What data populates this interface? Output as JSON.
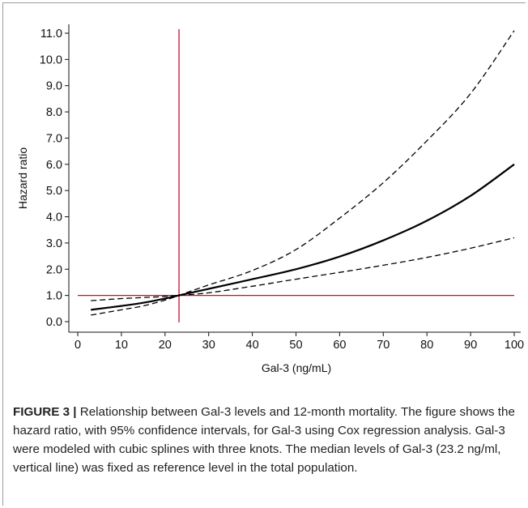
{
  "chart_data": {
    "type": "line",
    "title": "",
    "xlabel": "Gal-3 (ng/mL)",
    "ylabel": "Hazard ratio",
    "xlim": [
      0,
      100
    ],
    "ylim": [
      0,
      11
    ],
    "xticks": [
      "0",
      "10",
      "20",
      "30",
      "40",
      "50",
      "60",
      "70",
      "80",
      "90",
      "100"
    ],
    "yticks": [
      "0.0",
      "1.0",
      "2.0",
      "3.0",
      "4.0",
      "5.0",
      "6.0",
      "7.0",
      "8.0",
      "9.0",
      "10.0",
      "11.0"
    ],
    "grid": false,
    "reference_lines": {
      "vertical_x": 23.2,
      "horizontal_y": 1.0,
      "color": "#c8102e"
    },
    "x": [
      3,
      10,
      15,
      20,
      23.2,
      30,
      40,
      50,
      60,
      70,
      80,
      90,
      100
    ],
    "series": [
      {
        "style": "solid",
        "values": [
          0.45,
          0.6,
          0.72,
          0.88,
          1.0,
          1.25,
          1.62,
          2.0,
          2.48,
          3.1,
          3.85,
          4.8,
          6.0
        ]
      },
      {
        "style": "dashed",
        "values": [
          0.25,
          0.45,
          0.6,
          0.82,
          1.0,
          1.4,
          1.95,
          2.75,
          3.95,
          5.3,
          6.9,
          8.7,
          11.1
        ]
      },
      {
        "style": "dashed",
        "values": [
          0.8,
          0.88,
          0.92,
          0.96,
          1.0,
          1.1,
          1.35,
          1.62,
          1.88,
          2.15,
          2.45,
          2.8,
          3.2
        ]
      }
    ]
  },
  "caption": {
    "label": "FIGURE 3 |",
    "text": " Relationship between Gal-3 levels and 12-month mortality. The figure shows the hazard ratio, with 95% confidence intervals, for Gal-3 using Cox regression analysis. Gal-3 were modeled with cubic splines with three knots. The median levels of Gal-3 (23.2 ng/ml, vertical line) was fixed as reference level in the total population."
  },
  "colors": {
    "axis": "#111111",
    "curve": "#000000",
    "reference": "#c8102e"
  }
}
